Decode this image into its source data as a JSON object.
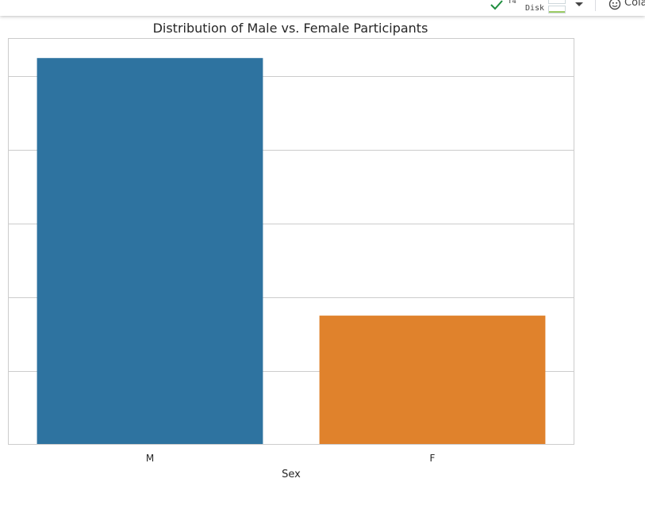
{
  "toolbar": {
    "runtime_label": "T4",
    "disk_label": "Disk",
    "colab_label": "Cola"
  },
  "chart_data": {
    "type": "bar",
    "title": "Distribution of Male vs. Female Participants",
    "xlabel": "Sex",
    "ylabel": "",
    "categories": [
      "M",
      "F"
    ],
    "values": [
      5.24,
      1.75
    ],
    "colors": [
      "#2e73a0",
      "#e0822c"
    ],
    "ylim": [
      0,
      5.5
    ],
    "yticks": [
      0,
      1,
      2,
      3,
      4,
      5
    ],
    "ytick_labels_visible": false,
    "grid": "horizontal"
  }
}
